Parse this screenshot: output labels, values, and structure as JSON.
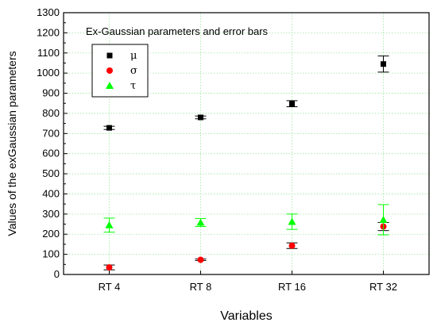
{
  "chart_data": {
    "type": "scatter",
    "title": "Ex-Gaussian parameters and error bars",
    "xlabel": "Variables",
    "ylabel": "Values of the exGaussian parameters",
    "categories": [
      "RT 4",
      "RT 8",
      "RT 16",
      "RT 32"
    ],
    "ylim": [
      0,
      1300
    ],
    "yticks": [
      0,
      100,
      200,
      300,
      400,
      500,
      600,
      700,
      800,
      900,
      1000,
      1100,
      1200,
      1300
    ],
    "grid": true,
    "legend_position": "top-left",
    "series": [
      {
        "name": "μ",
        "marker": "square",
        "color": "#000000",
        "values": [
          728,
          780,
          848,
          1045
        ],
        "err": [
          8,
          7,
          15,
          40
        ]
      },
      {
        "name": "σ",
        "marker": "circle",
        "color": "#ff0000",
        "values": [
          35,
          73,
          143,
          238
        ],
        "err": [
          12,
          4,
          14,
          20
        ]
      },
      {
        "name": "τ",
        "marker": "triangle",
        "color": "#00ff00",
        "values": [
          245,
          258,
          262,
          272
        ],
        "err": [
          35,
          20,
          38,
          75
        ]
      }
    ]
  }
}
